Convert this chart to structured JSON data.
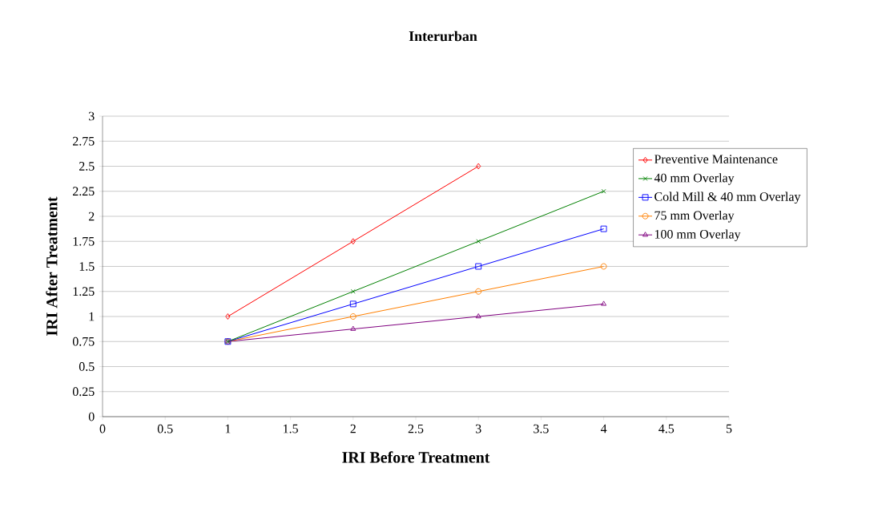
{
  "chart_data": {
    "type": "line",
    "title": "Interurban",
    "xlabel": "IRI Before Treatment",
    "ylabel": "IRI After Treatment",
    "xlim": [
      0,
      5
    ],
    "xticks": [
      0,
      0.5,
      1,
      1.5,
      2,
      2.5,
      3,
      3.5,
      4,
      4.5,
      5
    ],
    "ylim": [
      0,
      3
    ],
    "yticks": [
      0,
      0.25,
      0.5,
      0.75,
      1,
      1.25,
      1.5,
      1.75,
      2,
      2.25,
      2.5,
      2.75,
      3
    ],
    "grid": "y",
    "legend": "right",
    "line_style": "solid",
    "series": [
      {
        "name": "Preventive Maintenance",
        "color": "#ff0000",
        "marker": "diamond",
        "x": [
          1,
          2,
          3
        ],
        "values": [
          1,
          1.75,
          2.5
        ]
      },
      {
        "name": "40 mm Overlay",
        "color": "#008000",
        "marker": "cross",
        "x": [
          1,
          2,
          3,
          4
        ],
        "values": [
          0.75,
          1.25,
          1.75,
          2.25
        ]
      },
      {
        "name": "Cold Mill & 40 mm Overlay",
        "color": "#0000ff",
        "marker": "square",
        "x": [
          1,
          2,
          3,
          4
        ],
        "values": [
          0.75,
          1.125,
          1.5,
          1.875
        ]
      },
      {
        "name": "75 mm Overlay",
        "color": "#ff8000",
        "marker": "circle",
        "x": [
          1,
          2,
          3,
          4
        ],
        "values": [
          0.75,
          1.0,
          1.25,
          1.5
        ]
      },
      {
        "name": "100 mm Overlay",
        "color": "#800080",
        "marker": "triangle",
        "x": [
          1,
          2,
          3,
          4
        ],
        "values": [
          0.75,
          0.875,
          1.0,
          1.125
        ]
      }
    ]
  }
}
